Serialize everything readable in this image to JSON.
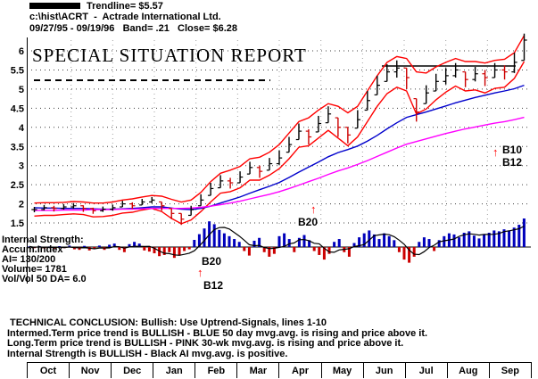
{
  "header": {
    "trendline_label": "Trendline= $5.57",
    "file_line": "c:\\hist\\ACRT  -  Actrade International Ltd.",
    "date_line": "09/27/95 - 09/19/96   Band= .21   Close= $6.28"
  },
  "title": "SPECIAL SITUATION REPORT",
  "months": [
    "Oct",
    "Nov",
    "Dec",
    "Jan",
    "Feb",
    "Mar",
    "Apr",
    "May",
    "Jun",
    "Jul",
    "Aug",
    "Sep"
  ],
  "left_panel_text": [
    "Internal Strength:",
    "Accum.Index",
    "AI= 130/200",
    "Volume= 1781",
    "Vol/Vol 50 DA= 6.0"
  ],
  "conclusion": [
    " TECHNICAL CONCLUSION: Bullish: Use Uptrend-Signals, lines 1-10",
    "Intermed.Term price trend is BULLISH - BLUE 50 day mvg.avg. is rising and price above it.",
    "Long.Term price trend is BULLISH - PINK 30-wk mvg.avg. is rising and price above it.",
    "Internal Strength is BULLISH - Black AI mvg.avg. is positive."
  ],
  "annotations": {
    "price_b20": "B20",
    "osc_b20": "B20",
    "osc_b12": "B12",
    "right_b10": "B10",
    "right_b12": "B12",
    "up_arrow": "↑"
  },
  "colors": {
    "bar_up": "#000000",
    "bar_down": "#cc0000",
    "band": "#ff0000",
    "ma50": "#0000cc",
    "ma30wk": "#ff00ff",
    "hist_pos": "#0000bb",
    "hist_neg": "#cc0000",
    "arrow": "#ff0000"
  },
  "chart_data": {
    "type": "mixed",
    "title": "SPECIAL SITUATION REPORT",
    "x_categories": [
      "Oct",
      "Nov",
      "Dec",
      "Jan",
      "Feb",
      "Mar",
      "Apr",
      "May",
      "Jun",
      "Jul",
      "Aug",
      "Sep"
    ],
    "panels": [
      {
        "name": "price",
        "type": "ohlc_bars_with_lines",
        "ylim": [
          1.3,
          6.45
        ],
        "yticks": [
          6,
          5.5,
          5,
          4.5,
          4,
          3.5,
          3,
          2.5,
          2,
          1.5
        ],
        "trendline_value": 5.57,
        "band_width": 0.21,
        "last_close": 6.28,
        "bars": {
          "high": [
            1.92,
            1.97,
            1.95,
            1.99,
            2.02,
            1.96,
            1.9,
            1.93,
            1.98,
            2.08,
            2.04,
            2.13,
            2.18,
            2.05,
            1.88,
            1.75,
            1.95,
            2.25,
            2.55,
            2.75,
            2.68,
            2.85,
            3.1,
            3.0,
            3.2,
            3.4,
            3.75,
            4.1,
            3.95,
            4.3,
            4.55,
            4.25,
            4.0,
            4.45,
            4.95,
            5.35,
            5.65,
            5.75,
            5.55,
            4.75,
            5.1,
            5.4,
            5.55,
            5.68,
            5.45,
            5.58,
            5.5,
            5.68,
            5.62,
            5.95,
            6.45
          ],
          "low": [
            1.78,
            1.83,
            1.8,
            1.85,
            1.87,
            1.79,
            1.74,
            1.79,
            1.82,
            1.92,
            1.87,
            1.97,
            2.02,
            1.82,
            1.6,
            1.45,
            1.7,
            1.95,
            2.22,
            2.42,
            2.4,
            2.55,
            2.78,
            2.68,
            2.88,
            3.02,
            3.35,
            3.68,
            3.55,
            3.88,
            4.12,
            3.75,
            3.58,
            3.98,
            4.45,
            4.85,
            5.2,
            5.3,
            5.0,
            4.15,
            4.62,
            4.95,
            5.12,
            5.3,
            5.05,
            5.2,
            5.08,
            5.3,
            5.25,
            5.42,
            5.75
          ],
          "close": [
            1.85,
            1.9,
            1.88,
            1.92,
            1.95,
            1.88,
            1.82,
            1.86,
            1.9,
            2.0,
            1.95,
            2.05,
            2.1,
            1.95,
            1.75,
            1.6,
            1.85,
            2.1,
            2.4,
            2.6,
            2.55,
            2.7,
            2.95,
            2.85,
            3.05,
            3.2,
            3.55,
            3.9,
            3.75,
            4.1,
            4.35,
            4.0,
            3.8,
            4.2,
            4.7,
            5.1,
            5.45,
            5.55,
            5.3,
            4.4,
            4.9,
            5.2,
            5.35,
            5.5,
            5.25,
            5.4,
            5.3,
            5.5,
            5.45,
            5.7,
            6.28
          ]
        },
        "lines": [
          {
            "name": "upper_trading_band",
            "color": "#ff0000",
            "values": [
              2.02,
              2.03,
              2.03,
              2.04,
              2.06,
              2.05,
              2.02,
              2.02,
              2.05,
              2.1,
              2.13,
              2.18,
              2.22,
              2.2,
              2.12,
              2.05,
              2.1,
              2.3,
              2.58,
              2.8,
              2.88,
              2.98,
              3.18,
              3.22,
              3.35,
              3.55,
              3.85,
              4.15,
              4.25,
              4.45,
              4.62,
              4.55,
              4.38,
              4.55,
              4.95,
              5.35,
              5.7,
              5.85,
              5.8,
              5.45,
              5.42,
              5.58,
              5.7,
              5.8,
              5.72,
              5.72,
              5.68,
              5.75,
              5.78,
              5.95,
              6.4
            ]
          },
          {
            "name": "lower_trading_band",
            "color": "#ff0000",
            "values": [
              1.68,
              1.7,
              1.7,
              1.72,
              1.74,
              1.72,
              1.66,
              1.67,
              1.7,
              1.76,
              1.78,
              1.84,
              1.88,
              1.8,
              1.62,
              1.48,
              1.58,
              1.8,
              2.05,
              2.28,
              2.32,
              2.42,
              2.62,
              2.62,
              2.75,
              2.92,
              3.18,
              3.48,
              3.52,
              3.72,
              3.92,
              3.72,
              3.52,
              3.75,
              4.15,
              4.55,
              4.88,
              5.05,
              4.95,
              4.35,
              4.48,
              4.72,
              4.92,
              5.08,
              4.95,
              4.98,
              4.9,
              5.02,
              5.05,
              5.28,
              5.72
            ]
          },
          {
            "name": "ma_50day_blue",
            "color": "#0000cc",
            "values": [
              1.9,
              1.89,
              1.89,
              1.88,
              1.88,
              1.88,
              1.87,
              1.86,
              1.86,
              1.87,
              1.88,
              1.9,
              1.92,
              1.92,
              1.89,
              1.86,
              1.85,
              1.88,
              1.94,
              2.02,
              2.1,
              2.18,
              2.28,
              2.37,
              2.46,
              2.56,
              2.69,
              2.83,
              2.96,
              3.09,
              3.23,
              3.34,
              3.42,
              3.51,
              3.64,
              3.79,
              3.96,
              4.12,
              4.26,
              4.33,
              4.4,
              4.48,
              4.56,
              4.64,
              4.71,
              4.78,
              4.84,
              4.9,
              4.95,
              5.01,
              5.1
            ]
          },
          {
            "name": "ma_30week_pink",
            "color": "#ff00ff",
            "values": [
              1.83,
              1.83,
              1.83,
              1.84,
              1.84,
              1.84,
              1.85,
              1.85,
              1.85,
              1.86,
              1.86,
              1.87,
              1.88,
              1.88,
              1.88,
              1.88,
              1.89,
              1.91,
              1.94,
              1.98,
              2.02,
              2.07,
              2.13,
              2.19,
              2.25,
              2.32,
              2.4,
              2.49,
              2.58,
              2.67,
              2.77,
              2.86,
              2.94,
              3.03,
              3.13,
              3.24,
              3.35,
              3.46,
              3.56,
              3.63,
              3.7,
              3.77,
              3.84,
              3.9,
              3.96,
              4.01,
              4.06,
              4.11,
              4.15,
              4.2,
              4.26
            ]
          }
        ]
      },
      {
        "name": "internal_strength",
        "type": "histogram",
        "ylim": [
          -1.1,
          1.1
        ],
        "positive_color": "#0000bb",
        "negative_color": "#cc0000",
        "values": [
          0.02,
          -0.04,
          0.03,
          -0.05,
          0.02,
          -0.06,
          0.03,
          -0.04,
          0.05,
          -0.08,
          -0.1,
          0.04,
          -0.12,
          -0.06,
          0.05,
          -0.1,
          0.08,
          0.12,
          -0.1,
          -0.18,
          0.1,
          0.18,
          0.12,
          -0.12,
          -0.16,
          -0.22,
          -0.32,
          -0.28,
          -0.18,
          -0.38,
          -0.3,
          -0.14,
          -0.08,
          0.25,
          0.45,
          0.65,
          0.9,
          0.8,
          0.6,
          0.48,
          0.38,
          0.28,
          0.18,
          -0.14,
          -0.3,
          0.22,
          0.32,
          -0.18,
          -0.34,
          -0.24,
          0.38,
          0.48,
          0.28,
          -0.18,
          0.32,
          0.42,
          0.24,
          -0.14,
          -0.28,
          -0.44,
          -0.24,
          0.18,
          0.28,
          -0.18,
          -0.34,
          0.14,
          0.34,
          0.48,
          0.58,
          0.44,
          0.28,
          0.48,
          0.38,
          0.24,
          -0.18,
          -0.44,
          -0.55,
          -0.34,
          0.18,
          0.34,
          0.28,
          -0.14,
          0.24,
          0.38,
          0.48,
          0.44,
          0.34,
          0.5,
          0.55,
          0.4,
          0.3,
          0.45,
          0.5,
          0.58,
          0.55,
          0.62,
          0.58,
          0.68,
          0.78,
          1.0
        ]
      }
    ]
  }
}
